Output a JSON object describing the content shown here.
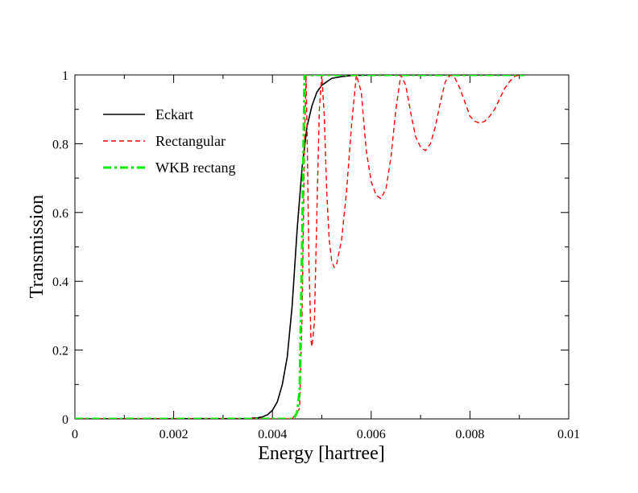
{
  "chart_data": {
    "type": "line",
    "title": "",
    "xlabel": "Energy [hartree]",
    "ylabel": "Transmission",
    "xlim": [
      0,
      0.01
    ],
    "ylim": [
      0,
      1
    ],
    "grid": false,
    "legend_position": "top-left",
    "x_ticks": [
      "0",
      "0.002",
      "0.004",
      "0.006",
      "0.008",
      "0.01"
    ],
    "y_ticks": [
      "0",
      "0.2",
      "0.4",
      "0.6",
      "0.8",
      "1"
    ],
    "series": [
      {
        "name": "Eckart",
        "color": "#000000",
        "style": "solid",
        "x": [
          0,
          0.0035,
          0.0037,
          0.0038,
          0.0039,
          0.004,
          0.0041,
          0.0042,
          0.0043,
          0.0044,
          0.0045,
          0.0046,
          0.0047,
          0.0048,
          0.0049,
          0.005,
          0.0051,
          0.0052,
          0.0054,
          0.0056,
          0.006,
          0.007,
          0.008,
          0.0091
        ],
        "y": [
          0,
          0.001,
          0.003,
          0.006,
          0.012,
          0.025,
          0.05,
          0.1,
          0.18,
          0.33,
          0.55,
          0.73,
          0.85,
          0.91,
          0.95,
          0.97,
          0.98,
          0.99,
          0.995,
          0.998,
          1,
          1,
          1,
          1
        ]
      },
      {
        "name": "Rectangular",
        "color": "#ff0000",
        "style": "dashed",
        "x": [
          0,
          0.0044,
          0.00455,
          0.0046,
          0.00465,
          0.00468,
          0.0047,
          0.00474,
          0.00478,
          0.0048,
          0.00485,
          0.0049,
          0.00495,
          0.005,
          0.00505,
          0.0051,
          0.00515,
          0.0052,
          0.00525,
          0.0053,
          0.0054,
          0.0055,
          0.0056,
          0.0057,
          0.0058,
          0.0059,
          0.006,
          0.0061,
          0.0062,
          0.0063,
          0.0064,
          0.0065,
          0.0066,
          0.0067,
          0.0068,
          0.0069,
          0.007,
          0.0071,
          0.0072,
          0.0073,
          0.0074,
          0.0075,
          0.0076,
          0.0077,
          0.0078,
          0.0079,
          0.008,
          0.0081,
          0.0082,
          0.0083,
          0.0084,
          0.0085,
          0.0086,
          0.0087,
          0.0088,
          0.0089,
          0.009,
          0.0091
        ],
        "y": [
          0,
          0,
          0.03,
          0.3,
          0.8,
          1.0,
          0.85,
          0.45,
          0.23,
          0.21,
          0.28,
          0.6,
          0.9,
          1.0,
          0.88,
          0.66,
          0.52,
          0.46,
          0.44,
          0.45,
          0.52,
          0.66,
          0.85,
          1.0,
          0.95,
          0.78,
          0.69,
          0.65,
          0.64,
          0.67,
          0.76,
          0.9,
          1.0,
          0.97,
          0.89,
          0.82,
          0.79,
          0.78,
          0.8,
          0.85,
          0.92,
          0.98,
          1.0,
          0.99,
          0.96,
          0.92,
          0.88,
          0.865,
          0.86,
          0.865,
          0.88,
          0.9,
          0.93,
          0.96,
          0.98,
          0.995,
          1.0,
          1.0
        ]
      },
      {
        "name": "WKB rectang",
        "color": "#00ee00",
        "style": "dash-dot",
        "x": [
          0,
          0.0044,
          0.00445,
          0.0045,
          0.00455,
          0.0046,
          0.00465,
          0.0047,
          0.0048,
          0.0091
        ],
        "y": [
          0,
          0,
          0.005,
          0.02,
          0.08,
          0.5,
          1.0,
          1.0,
          1.0,
          1.0
        ]
      }
    ]
  }
}
